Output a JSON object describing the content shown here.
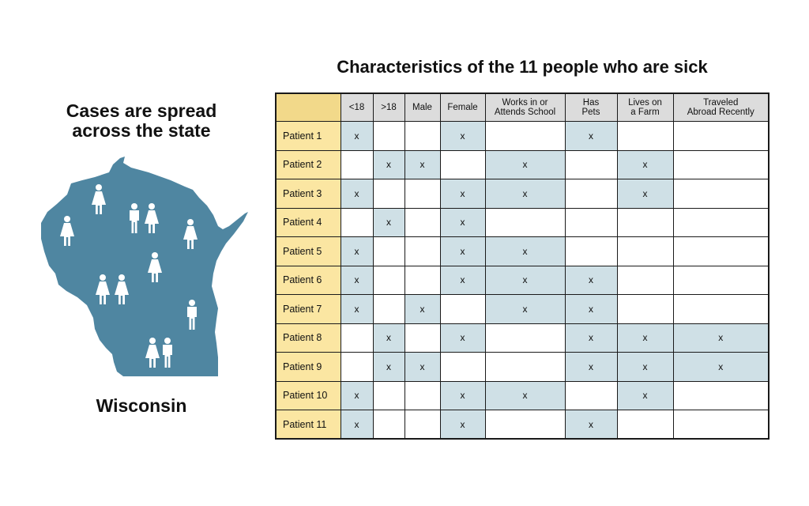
{
  "left_panel": {
    "heading_line1": "Cases are spread",
    "heading_line2": "across the state",
    "state_label": "Wisconsin",
    "map_color": "#4f86a1"
  },
  "table": {
    "title": "Characteristics of the 11 people who are sick",
    "columns": [
      [
        "<18"
      ],
      [
        ">18"
      ],
      [
        "Male"
      ],
      [
        "Female"
      ],
      [
        "Works in or",
        "Attends School"
      ],
      [
        "Has",
        "Pets"
      ],
      [
        "Lives on",
        "a Farm"
      ],
      [
        "Traveled",
        "Abroad Recently"
      ]
    ],
    "mark": "x",
    "rows": [
      {
        "name": "Patient 1",
        "marks": [
          1,
          0,
          0,
          1,
          0,
          1,
          0,
          0
        ]
      },
      {
        "name": "Patient 2",
        "marks": [
          0,
          1,
          1,
          0,
          1,
          0,
          1,
          0
        ]
      },
      {
        "name": "Patient 3",
        "marks": [
          1,
          0,
          0,
          1,
          1,
          0,
          1,
          0
        ]
      },
      {
        "name": "Patient 4",
        "marks": [
          0,
          1,
          0,
          1,
          0,
          0,
          0,
          0
        ]
      },
      {
        "name": "Patient 5",
        "marks": [
          1,
          0,
          0,
          1,
          1,
          0,
          0,
          0
        ]
      },
      {
        "name": "Patient 6",
        "marks": [
          1,
          0,
          0,
          1,
          1,
          1,
          0,
          0
        ]
      },
      {
        "name": "Patient 7",
        "marks": [
          1,
          0,
          1,
          0,
          1,
          1,
          0,
          0
        ]
      },
      {
        "name": "Patient 8",
        "marks": [
          0,
          1,
          0,
          1,
          0,
          1,
          1,
          1
        ]
      },
      {
        "name": "Patient 9",
        "marks": [
          0,
          1,
          1,
          0,
          0,
          1,
          1,
          1
        ]
      },
      {
        "name": "Patient 10",
        "marks": [
          1,
          0,
          0,
          1,
          1,
          0,
          1,
          0
        ]
      },
      {
        "name": "Patient 11",
        "marks": [
          1,
          0,
          0,
          1,
          0,
          1,
          0,
          0
        ]
      }
    ],
    "colors": {
      "header": "#dcdcdc",
      "corner": "#f2d98a",
      "name_cell": "#fbe6a2",
      "highlight": "#cfe0e6"
    }
  },
  "map_figures": [
    "female",
    "female",
    "male",
    "female",
    "female",
    "female",
    "female",
    "female",
    "male",
    "female",
    "male"
  ]
}
